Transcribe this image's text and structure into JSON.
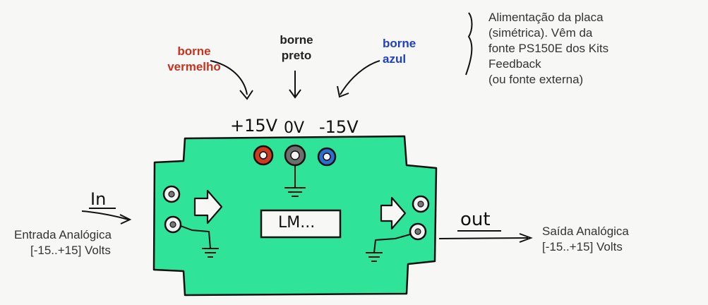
{
  "terminals": {
    "red": {
      "label_line1": "borne",
      "label_line2": "vermelho",
      "voltage": "+15V",
      "color": "#cc3a22"
    },
    "black": {
      "label_line1": "borne",
      "label_line2": "preto",
      "voltage": "0V",
      "color": "#6e6e6e"
    },
    "blue": {
      "label_line1": "borne",
      "label_line2": "azul",
      "voltage": "-15V",
      "color": "#2f6ed0"
    }
  },
  "power_note": [
    "Alimentação da placa",
    "(simétrica). Vêm da",
    "fonte PS150E dos Kits",
    "Feedback",
    "(ou fonte externa)"
  ],
  "input": {
    "arrow_label": "In",
    "description_line1": "Entrada Analógica",
    "description_line2": "[-15..+15] Volts"
  },
  "output": {
    "arrow_label": "out",
    "description_line1": "Saída Analógica",
    "description_line2": "[-15..+15] Volts"
  },
  "chip": {
    "label": "LM..."
  },
  "colors": {
    "board": "#2fe398",
    "ink": "#111111",
    "red_label": "#c8321e",
    "blue_label": "#1e3fc8"
  }
}
